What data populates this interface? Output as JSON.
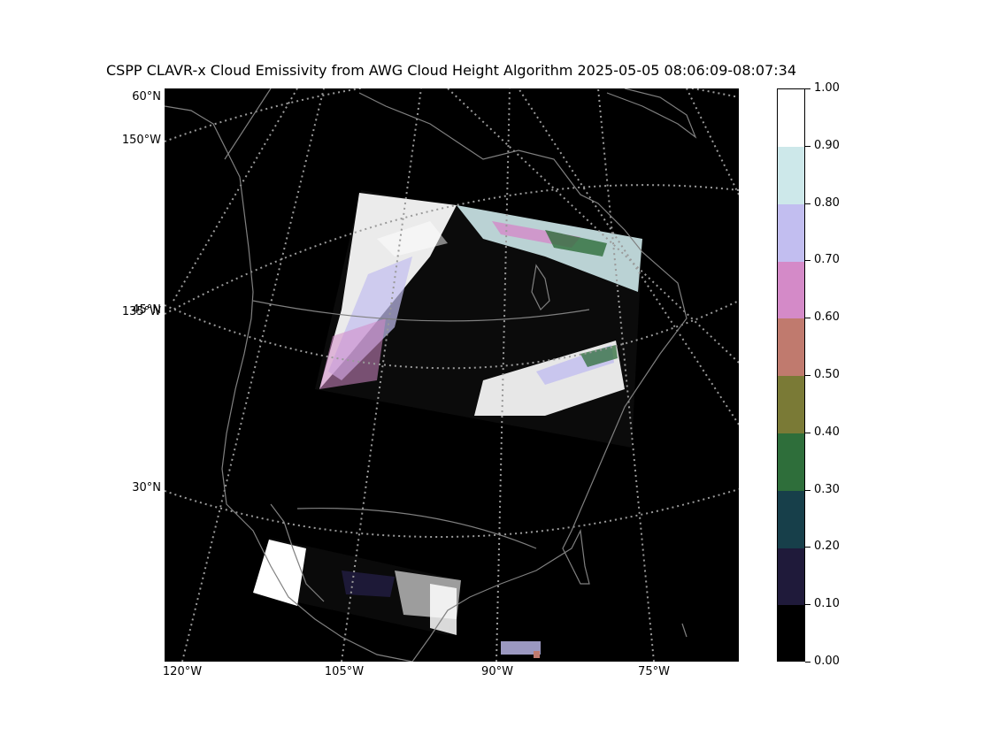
{
  "title": "CSPP CLAVR-x Cloud Emissivity from AWG Cloud Height Algorithm 2025-05-05 08:06:09-08:07:34",
  "lat_labels": [
    "60°N",
    "150°W",
    "135°W",
    "45°N",
    "30°N"
  ],
  "lon_labels": [
    "120°W",
    "105°W",
    "90°W",
    "75°W"
  ],
  "colorbar": {
    "ticks": [
      "0.00",
      "0.10",
      "0.20",
      "0.30",
      "0.40",
      "0.50",
      "0.60",
      "0.70",
      "0.80",
      "0.90",
      "1.00"
    ],
    "colors": [
      "#000000",
      "#1f1a3a",
      "#173f4a",
      "#2e6e3a",
      "#7a7a36",
      "#c07a6e",
      "#d48ac8",
      "#c2bef0",
      "#cde8ea",
      "#ffffff"
    ]
  },
  "colors": {
    "map_background": "#000000",
    "coastline": "#808080",
    "gridline": "#9a9a9a"
  }
}
